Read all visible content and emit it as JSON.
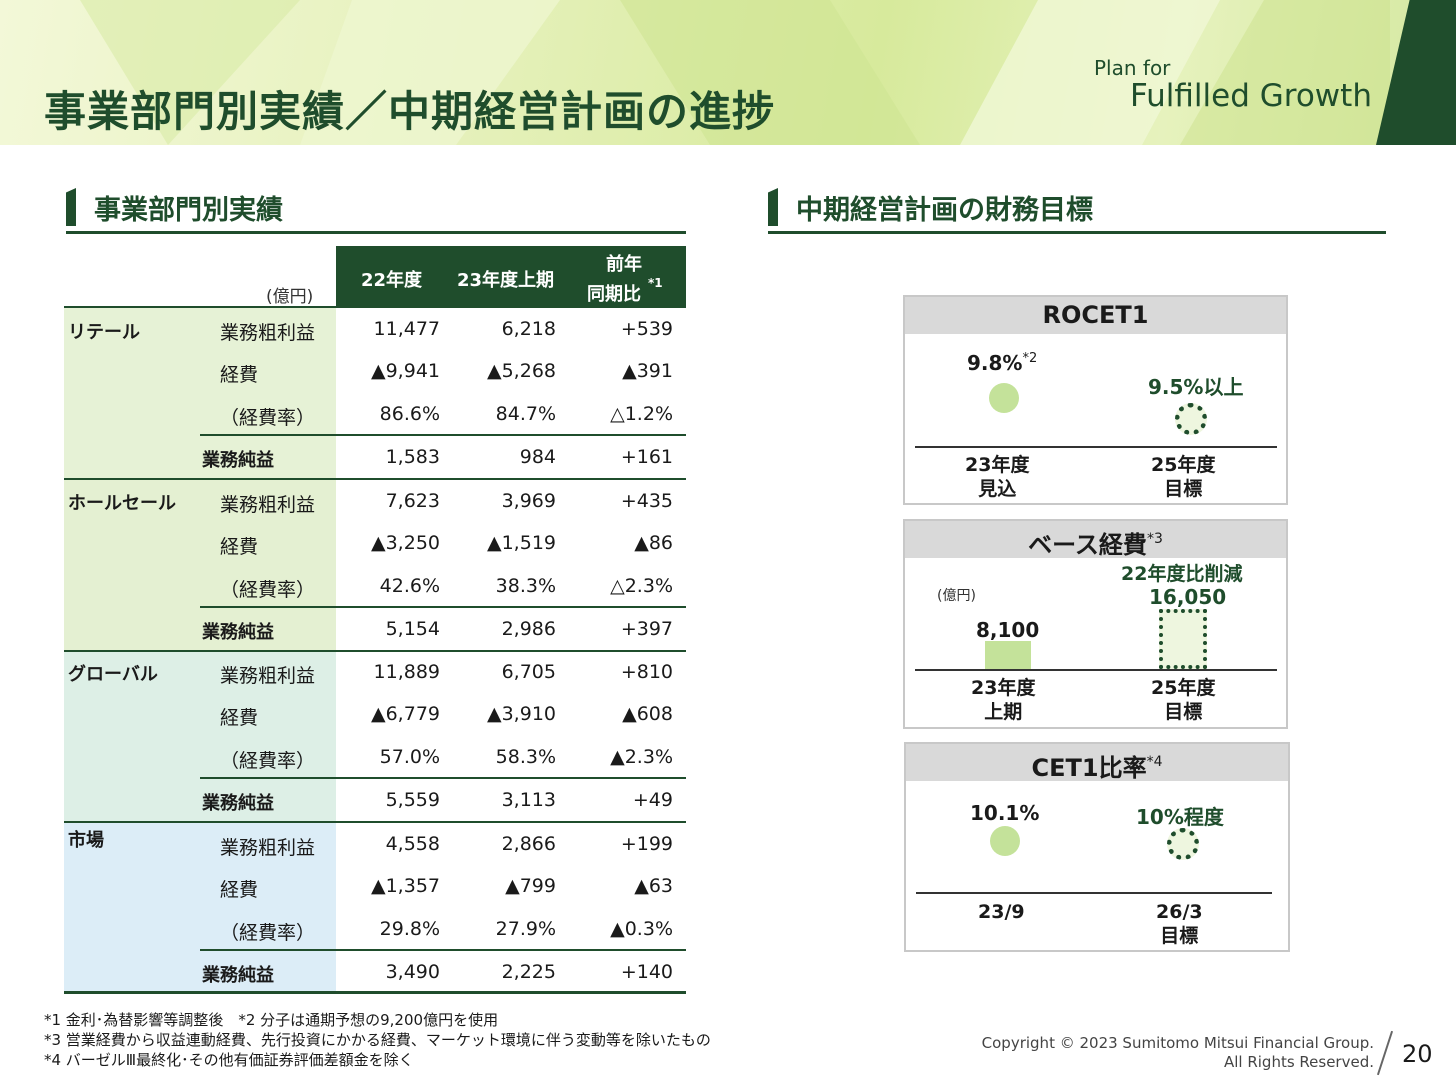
{
  "header": {
    "title": "事業部門別実績／中期経営計画の進捗",
    "brand_line1": "Plan for",
    "brand_line2": "Fulfilled Growth"
  },
  "left_section": {
    "heading": "事業部門別実績",
    "unit": "(億円)",
    "columns": [
      "22年度",
      "23年度上期",
      "前年",
      "同期比",
      "*1"
    ],
    "segments": [
      {
        "name": "リテール",
        "rows": [
          {
            "label": "業務粗利益",
            "v1": "11,477",
            "v2": "6,218",
            "v3": "+539"
          },
          {
            "label": "経費",
            "v1": "▲9,941",
            "v2": "▲5,268",
            "v3": "▲391"
          },
          {
            "label": "（経費率）",
            "v1": "86.6%",
            "v2": "84.7%",
            "v3": "△1.2%"
          },
          {
            "label": "業務純益",
            "v1": "1,583",
            "v2": "984",
            "v3": "+161"
          }
        ]
      },
      {
        "name": "ホールセール",
        "rows": [
          {
            "label": "業務粗利益",
            "v1": "7,623",
            "v2": "3,969",
            "v3": "+435"
          },
          {
            "label": "経費",
            "v1": "▲3,250",
            "v2": "▲1,519",
            "v3": "▲86"
          },
          {
            "label": "（経費率）",
            "v1": "42.6%",
            "v2": "38.3%",
            "v3": "△2.3%"
          },
          {
            "label": "業務純益",
            "v1": "5,154",
            "v2": "2,986",
            "v3": "+397"
          }
        ]
      },
      {
        "name": "グローバル",
        "rows": [
          {
            "label": "業務粗利益",
            "v1": "11,889",
            "v2": "6,705",
            "v3": "+810"
          },
          {
            "label": "経費",
            "v1": "▲6,779",
            "v2": "▲3,910",
            "v3": "▲608"
          },
          {
            "label": "（経費率）",
            "v1": "57.0%",
            "v2": "58.3%",
            "v3": "▲2.3%"
          },
          {
            "label": "業務純益",
            "v1": "5,559",
            "v2": "3,113",
            "v3": "+49"
          }
        ]
      },
      {
        "name": "市場",
        "rows": [
          {
            "label": "業務粗利益",
            "v1": "4,558",
            "v2": "2,866",
            "v3": "+199"
          },
          {
            "label": "経費",
            "v1": "▲1,357",
            "v2": "▲799",
            "v3": "▲63"
          },
          {
            "label": "（経費率）",
            "v1": "29.8%",
            "v2": "27.9%",
            "v3": "▲0.3%"
          },
          {
            "label": "業務純益",
            "v1": "3,490",
            "v2": "2,225",
            "v3": "+140"
          }
        ]
      }
    ]
  },
  "right_section": {
    "heading": "中期経営計画の財務目標",
    "roce": {
      "title": "ROCET1",
      "actual": "9.8%",
      "actual_note": "*2",
      "target": "9.5%以上",
      "x_left_1": "23年度",
      "x_left_2": "見込",
      "x_right_1": "25年度",
      "x_right_2": "目標"
    },
    "base_cost": {
      "title": "ベース経費",
      "title_note": "*3",
      "unit": "(億円)",
      "actual": "8,100",
      "target_line1": "22年度比削減",
      "target_line2": "16,050",
      "x_left_1": "23年度",
      "x_left_2": "上期",
      "x_right_1": "25年度",
      "x_right_2": "目標"
    },
    "cet1": {
      "title": "CET1比率",
      "title_note": "*4",
      "actual": "10.1%",
      "target": "10%程度",
      "x_left_1": "23/9",
      "x_right_1": "26/3",
      "x_right_2": "目標"
    }
  },
  "footer": {
    "note1": "*1 金利･為替影響等調整後　*2 分子は通期予想の9,200億円を使用",
    "note2": "*3 営業経費から収益連動経費、先行投資にかかる経費、マーケット環境に伴う変動等を除いたもの",
    "note3": "*4 バーゼルⅢ最終化･その他有価証券評価差額金を除く",
    "copyright1": "Copyright © 2023 Sumitomo Mitsui Financial Group.",
    "copyright2": "All Rights Reserved.",
    "page_number": "20"
  },
  "colors": {
    "brand_dark_green": "#1f4d2c",
    "retail_bg": "#e6f2d6",
    "wholesale_bg": "#e4f0d2",
    "global_bg": "#ddefe6",
    "market_bg": "#dcedf7",
    "header_light_green": "#e4f0b8"
  }
}
